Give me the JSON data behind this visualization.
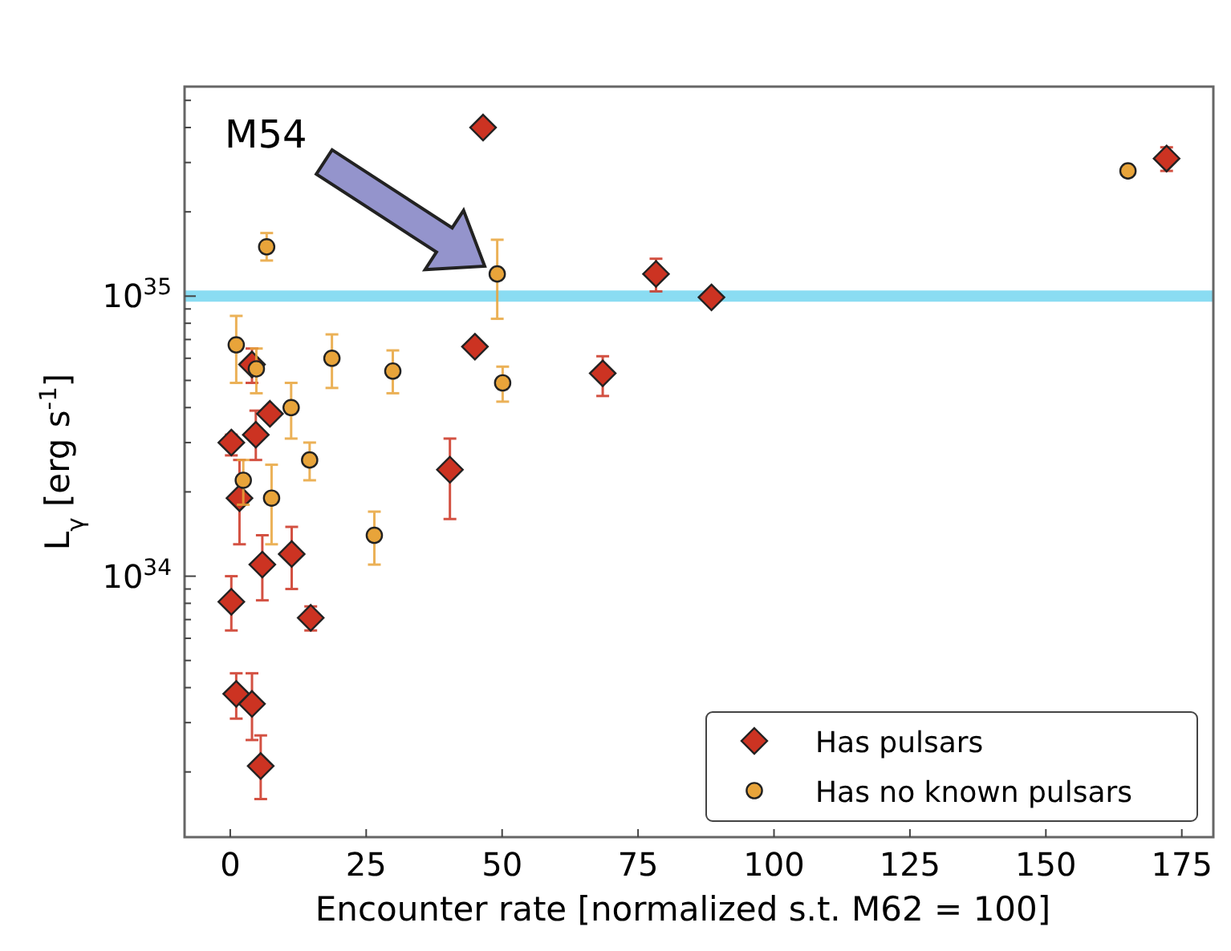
{
  "chart_data": {
    "type": "scatter",
    "xlabel": "Encounter rate [normalized s.t. M62 = 100]",
    "ylabel": "L$_{γ}$ [erg s$^{-1}$]",
    "log": "y",
    "xlim": [
      -8.4,
      180.8
    ],
    "xticks": [
      0,
      25,
      50,
      75,
      100,
      125,
      150,
      175
    ],
    "ylim": [
      1.17e+33,
      5.6e+35
    ],
    "yticks": [
      {
        "value": 2e+33,
        "label": null
      },
      {
        "value": 3e+33,
        "label": null
      },
      {
        "value": 4e+33,
        "label": null
      },
      {
        "value": 5e+33,
        "label": null
      },
      {
        "value": 6e+33,
        "label": null
      },
      {
        "value": 7e+33,
        "label": null
      },
      {
        "value": 8e+33,
        "label": null
      },
      {
        "value": 9e+33,
        "label": null
      },
      {
        "value": 1e+34,
        "label": "10$^{34}$"
      },
      {
        "value": 2e+34,
        "label": null
      },
      {
        "value": 3e+34,
        "label": null
      },
      {
        "value": 4e+34,
        "label": null
      },
      {
        "value": 5e+34,
        "label": null
      },
      {
        "value": 6e+34,
        "label": null
      },
      {
        "value": 7e+34,
        "label": null
      },
      {
        "value": 8e+34,
        "label": null
      },
      {
        "value": 9e+34,
        "label": null
      },
      {
        "value": 1e+35,
        "label": "10$^{35}$"
      },
      {
        "value": 2e+35,
        "label": null
      },
      {
        "value": 3e+35,
        "label": null
      },
      {
        "value": 4e+35,
        "label": null
      },
      {
        "value": 5e+35,
        "label": null
      }
    ],
    "grid": false,
    "legend": "bottom right",
    "ref_lines": [
      {
        "axis": "y",
        "value": 1e+35,
        "color": "#8adcf2"
      }
    ],
    "annotations": [
      "M54"
    ],
    "series": [
      {
        "name": "Has pulsars",
        "color": "#cc3322",
        "marker": "diamond",
        "x": [
          46.5,
          45.0,
          4.0,
          7.3,
          4.7,
          0.2,
          1.7,
          5.9,
          11.3,
          14.8,
          0.2,
          1.1,
          4.0,
          5.6,
          40.4,
          78.3,
          88.5,
          68.5,
          172.2
        ],
        "values": [
          4e+35,
          6.6e+34,
          5.7e+34,
          3.8e+34,
          3.2e+34,
          3e+34,
          1.9e+34,
          1.1e+34,
          1.2e+34,
          7.1e+33,
          8.1e+33,
          3.8e+33,
          3.5e+33,
          2.1e+33,
          2.4e+34,
          1.2e+35,
          9.9e+34,
          5.3e+34,
          3.1e+35
        ],
        "errors": [
          null,
          null,
          [
            4.9e+34,
            6.5e+34
          ],
          [
            3.6e+34,
            4e+34
          ],
          [
            2.6e+34,
            3.9e+34
          ],
          [
            2.7e+34,
            3.2e+34
          ],
          [
            1.3e+34,
            2.6e+34
          ],
          [
            8.2e+33,
            1.4e+34
          ],
          [
            9e+33,
            1.5e+34
          ],
          [
            6.4e+33,
            7.8e+33
          ],
          [
            6.4e+33,
            1e+34
          ],
          [
            3.1e+33,
            4.5e+33
          ],
          [
            2.6e+33,
            4.5e+33
          ],
          [
            1.6e+33,
            2.7e+33
          ],
          [
            1.6e+34,
            3.1e+34
          ],
          [
            1.04e+35,
            1.36e+35
          ],
          null,
          [
            4.4e+34,
            6.1e+34
          ],
          [
            2.8e+35,
            3.4e+35
          ]
        ]
      },
      {
        "name": "Has no known pulsars",
        "color": "#e8a43a",
        "marker": "circle",
        "x": [
          6.7,
          49.1,
          1.1,
          4.8,
          18.7,
          29.9,
          50.1,
          11.2,
          14.6,
          2.4,
          7.6,
          26.5,
          165.1
        ],
        "values": [
          1.5e+35,
          1.2e+35,
          6.7e+34,
          5.5e+34,
          6e+34,
          5.4e+34,
          4.9e+34,
          4e+34,
          2.6e+34,
          2.2e+34,
          1.9e+34,
          1.4e+34,
          2.8e+35
        ],
        "errors": [
          [
            1.34e+35,
            1.68e+35
          ],
          [
            8.3e+34,
            1.59e+35
          ],
          [
            4.9e+34,
            8.5e+34
          ],
          [
            4.5e+34,
            6.5e+34
          ],
          [
            4.7e+34,
            7.3e+34
          ],
          [
            4.5e+34,
            6.4e+34
          ],
          [
            4.2e+34,
            5.6e+34
          ],
          [
            3.1e+34,
            4.9e+34
          ],
          [
            2.2e+34,
            3e+34
          ],
          [
            1.8e+34,
            2.6e+34
          ],
          [
            1.3e+34,
            2.5e+34
          ],
          [
            1.1e+34,
            1.7e+34
          ],
          null
        ]
      }
    ]
  }
}
